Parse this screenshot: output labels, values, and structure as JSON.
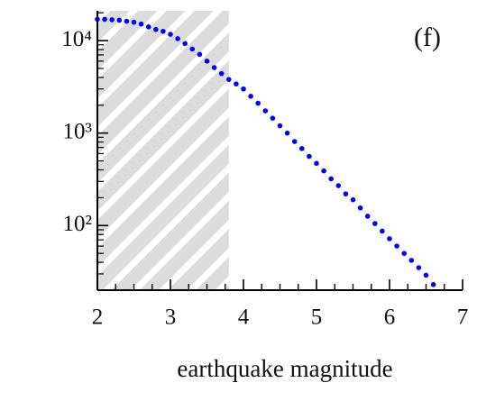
{
  "chart_data": {
    "type": "scatter",
    "annotation": "(f)",
    "x_label": "earthquake magnitude",
    "log_y": true,
    "color": "#0000ff",
    "shade_color": "#dcdcdc",
    "shaded_region": [
      2,
      3.8
    ],
    "xlim": [
      2,
      7
    ],
    "ylim": [
      20,
      21000
    ],
    "xticks": [
      2,
      3,
      4,
      5,
      6,
      7
    ],
    "xminorticks": [
      2.25,
      2.5,
      2.75,
      3.25,
      3.5,
      3.75,
      4.25,
      4.5,
      4.75,
      5.25,
      5.5,
      5.75,
      6.25,
      6.5,
      6.75
    ],
    "yticks": [
      {
        "value": 100,
        "label": "10²"
      },
      {
        "value": 1000,
        "label": "10³"
      },
      {
        "value": 10000,
        "label": "10⁴"
      }
    ],
    "yminorticks": [
      20,
      30,
      40,
      50,
      60,
      70,
      80,
      90,
      200,
      300,
      400,
      500,
      600,
      700,
      800,
      900,
      2000,
      3000,
      4000,
      5000,
      6000,
      7000,
      8000,
      9000,
      20000
    ],
    "x": [
      2.0,
      2.1,
      2.2,
      2.3,
      2.4,
      2.5,
      2.6,
      2.7,
      2.8,
      2.9,
      3.0,
      3.1,
      3.2,
      3.3,
      3.4,
      3.5,
      3.6,
      3.7,
      3.8,
      3.9,
      4.0,
      4.1,
      4.2,
      4.3,
      4.4,
      4.5,
      4.6,
      4.7,
      4.8,
      4.9,
      5.0,
      5.1,
      5.2,
      5.3,
      5.4,
      5.5,
      5.6,
      5.7,
      5.8,
      5.9,
      6.0,
      6.1,
      6.2,
      6.3,
      6.4,
      6.5,
      6.6
    ],
    "values": [
      17000,
      17000,
      16800,
      16600,
      16200,
      15800,
      15100,
      14100,
      13200,
      12600,
      11700,
      10500,
      9300,
      8100,
      7100,
      6000,
      5100,
      4400,
      3800,
      3400,
      3000,
      2500,
      2100,
      1740,
      1450,
      1200,
      1000,
      810,
      680,
      560,
      470,
      390,
      320,
      270,
      220,
      190,
      155,
      126,
      105,
      87,
      72,
      60,
      50,
      42,
      35,
      29,
      23
    ]
  }
}
